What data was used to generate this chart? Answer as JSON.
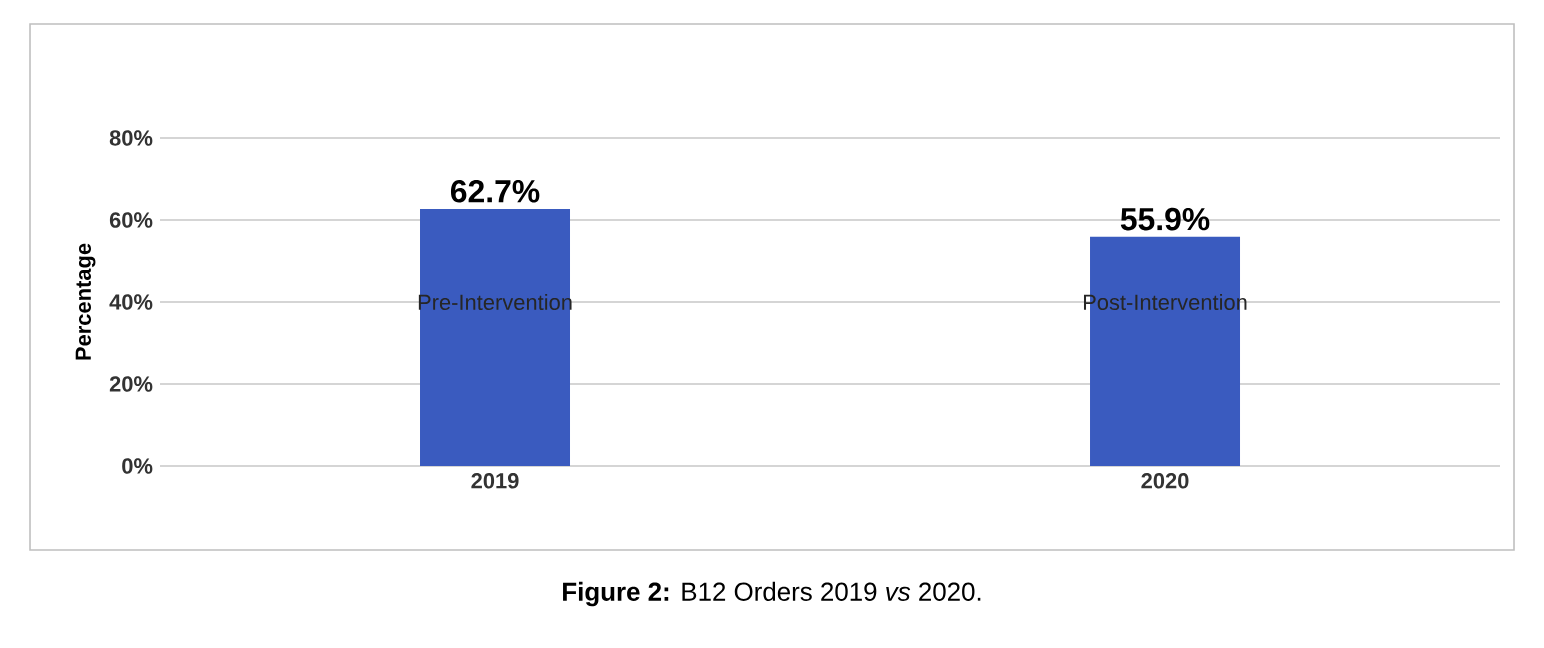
{
  "chart_data": {
    "type": "bar",
    "ylabel": "Percentage",
    "categories": [
      "2019",
      "2020"
    ],
    "values": [
      62.7,
      55.9
    ],
    "color": "#3a5bbf",
    "value_labels": [
      "62.7%",
      "55.9%"
    ],
    "ylim": [
      0,
      80
    ],
    "yticks": [
      {
        "value": 0,
        "label": "0%"
      },
      {
        "value": 20,
        "label": "20%"
      },
      {
        "value": 40,
        "label": "40%"
      },
      {
        "value": 60,
        "label": "60%"
      },
      {
        "value": 80,
        "label": "80%"
      }
    ],
    "grid": "y",
    "annotations": [
      "Pre-Intervention",
      "Post-Intervention",
      "**Figure 2:** B12 Orders 2019 *vs* 2020."
    ]
  }
}
